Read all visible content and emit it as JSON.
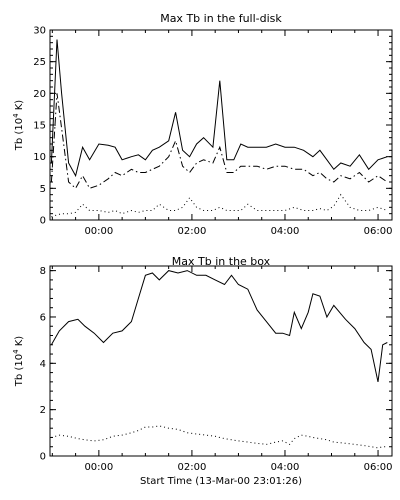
{
  "chart_data": [
    {
      "type": "line",
      "title": "Max Tb in the full-disk",
      "ylabel": "Tb (10",
      "ylabel_sup": "4",
      "ylabel_tail": " K)",
      "xlabel": "",
      "xlim": [
        -1.05,
        6.3
      ],
      "ylim": [
        0,
        30
      ],
      "xticks": [
        0,
        2,
        4,
        6
      ],
      "xticklabels": [
        "00:00",
        "02:00",
        "04:00",
        "06:00"
      ],
      "yticks": [
        0,
        5,
        10,
        15,
        20,
        25,
        30
      ],
      "yticklabels": [
        "0",
        "5",
        "10",
        "15",
        "20",
        "25",
        "30"
      ],
      "series": [
        {
          "style": "solid",
          "x": [
            -1.02,
            -0.9,
            -0.8,
            -0.65,
            -0.5,
            -0.35,
            -0.2,
            0.0,
            0.2,
            0.35,
            0.5,
            0.7,
            0.85,
            1.0,
            1.15,
            1.3,
            1.5,
            1.65,
            1.8,
            1.95,
            2.1,
            2.25,
            2.45,
            2.6,
            2.75,
            2.9,
            3.05,
            3.2,
            3.4,
            3.6,
            3.8,
            4.0,
            4.2,
            4.4,
            4.6,
            4.75,
            4.9,
            5.05,
            5.2,
            5.4,
            5.6,
            5.8,
            6.0,
            6.2
          ],
          "y": [
            9,
            28.5,
            20,
            9,
            7,
            11.5,
            9.5,
            12,
            11.8,
            11.5,
            9.5,
            10,
            10.3,
            9.5,
            11,
            11.5,
            12.5,
            17,
            11,
            10,
            12,
            13,
            11.5,
            22,
            9.5,
            9.5,
            12,
            11.5,
            11.5,
            11.5,
            12,
            11.5,
            11.5,
            11,
            10,
            11,
            9.5,
            8,
            9,
            8.5,
            10.3,
            8,
            9.5,
            10
          ]
        },
        {
          "style": "dash-dot",
          "x": [
            -1.02,
            -0.9,
            -0.8,
            -0.65,
            -0.5,
            -0.35,
            -0.2,
            0.0,
            0.2,
            0.35,
            0.5,
            0.7,
            0.85,
            1.0,
            1.15,
            1.3,
            1.5,
            1.65,
            1.8,
            1.95,
            2.1,
            2.25,
            2.45,
            2.6,
            2.75,
            2.9,
            3.05,
            3.2,
            3.4,
            3.6,
            3.8,
            4.0,
            4.2,
            4.4,
            4.6,
            4.75,
            4.9,
            5.05,
            5.2,
            5.4,
            5.6,
            5.8,
            6.0,
            6.2
          ],
          "y": [
            6,
            20,
            14.5,
            6,
            5,
            7,
            5,
            5.5,
            6.5,
            7.5,
            7,
            8,
            7.5,
            7.5,
            8,
            8.5,
            10,
            12.5,
            8.5,
            7.5,
            9,
            9.5,
            9,
            11.5,
            7.5,
            7.5,
            8.5,
            8.5,
            8.5,
            8,
            8.5,
            8.5,
            8,
            8,
            7,
            7.5,
            6.5,
            6,
            7,
            6.5,
            7.5,
            6,
            7,
            6
          ]
        },
        {
          "style": "dotted",
          "x": [
            -1.02,
            -0.9,
            -0.8,
            -0.65,
            -0.5,
            -0.35,
            -0.2,
            0.0,
            0.2,
            0.35,
            0.5,
            0.7,
            0.85,
            1.0,
            1.15,
            1.3,
            1.5,
            1.65,
            1.8,
            1.95,
            2.1,
            2.25,
            2.45,
            2.6,
            2.75,
            2.9,
            3.05,
            3.2,
            3.4,
            3.6,
            3.8,
            4.0,
            4.2,
            4.4,
            4.6,
            4.75,
            4.9,
            5.05,
            5.2,
            5.4,
            5.6,
            5.8,
            6.0,
            6.2
          ],
          "y": [
            0.5,
            0.8,
            1,
            1,
            1.2,
            2.5,
            1.5,
            1.5,
            1.2,
            1.5,
            1,
            1.5,
            1.2,
            1.5,
            1.5,
            2.5,
            1.5,
            1.5,
            2,
            3.5,
            2,
            1.5,
            1.5,
            2,
            1.5,
            1.5,
            1.5,
            2.5,
            1.5,
            1.5,
            1.5,
            1.5,
            2,
            1.5,
            1.5,
            1.8,
            1.5,
            2.2,
            4,
            2,
            1.5,
            1.5,
            2,
            1.5
          ]
        }
      ]
    },
    {
      "type": "line",
      "title": "Max Tb in the box",
      "ylabel": "Tb (10",
      "ylabel_sup": "4",
      "ylabel_tail": " K)",
      "xlabel": "Start Time (13-Mar-00 23:01:26)",
      "xlim": [
        -1.05,
        6.3
      ],
      "ylim": [
        0,
        8.2
      ],
      "xticks": [
        0,
        2,
        4,
        6
      ],
      "xticklabels": [
        "00:00",
        "02:00",
        "04:00",
        "06:00"
      ],
      "yticks": [
        0,
        2,
        4,
        6,
        8
      ],
      "yticklabels": [
        "0",
        "2",
        "4",
        "6",
        "8"
      ],
      "series": [
        {
          "style": "solid",
          "x": [
            -1.02,
            -0.85,
            -0.65,
            -0.45,
            -0.3,
            -0.1,
            0.1,
            0.3,
            0.5,
            0.7,
            0.85,
            1.0,
            1.15,
            1.3,
            1.5,
            1.7,
            1.9,
            2.1,
            2.3,
            2.5,
            2.7,
            2.85,
            3.0,
            3.2,
            3.4,
            3.6,
            3.8,
            3.95,
            4.1,
            4.2,
            4.35,
            4.5,
            4.6,
            4.75,
            4.9,
            5.05,
            5.3,
            5.5,
            5.7,
            5.85,
            6.0,
            6.1,
            6.2
          ],
          "y": [
            4.8,
            5.4,
            5.8,
            5.9,
            5.6,
            5.3,
            4.9,
            5.3,
            5.4,
            5.8,
            6.8,
            7.8,
            7.9,
            7.6,
            8.0,
            7.9,
            8.0,
            7.8,
            7.8,
            7.6,
            7.4,
            7.8,
            7.4,
            7.2,
            6.3,
            5.8,
            5.3,
            5.3,
            5.2,
            6.2,
            5.5,
            6.2,
            7.0,
            6.9,
            6.0,
            6.5,
            5.9,
            5.5,
            4.9,
            4.6,
            3.2,
            4.8,
            4.9
          ]
        },
        {
          "style": "dotted",
          "x": [
            -1.02,
            -0.85,
            -0.65,
            -0.45,
            -0.3,
            -0.1,
            0.1,
            0.3,
            0.5,
            0.7,
            0.85,
            1.0,
            1.15,
            1.3,
            1.5,
            1.7,
            1.9,
            2.1,
            2.3,
            2.5,
            2.7,
            2.85,
            3.0,
            3.2,
            3.4,
            3.6,
            3.8,
            3.95,
            4.1,
            4.2,
            4.35,
            4.5,
            4.6,
            4.75,
            4.9,
            5.05,
            5.3,
            5.5,
            5.7,
            5.85,
            6.0,
            6.1,
            6.2
          ],
          "y": [
            0.8,
            0.9,
            0.85,
            0.75,
            0.7,
            0.65,
            0.7,
            0.85,
            0.9,
            1.0,
            1.1,
            1.25,
            1.25,
            1.3,
            1.2,
            1.15,
            1.0,
            0.95,
            0.9,
            0.85,
            0.75,
            0.7,
            0.65,
            0.6,
            0.55,
            0.5,
            0.6,
            0.65,
            0.5,
            0.75,
            0.9,
            0.85,
            0.8,
            0.75,
            0.7,
            0.6,
            0.55,
            0.5,
            0.45,
            0.4,
            0.35,
            0.4,
            0.4
          ]
        }
      ]
    }
  ]
}
